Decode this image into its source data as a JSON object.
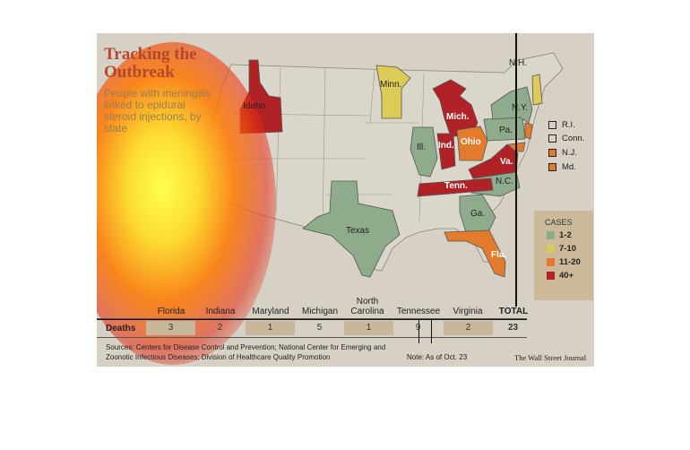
{
  "title": "Tracking the Outbreak",
  "subtitle": "People with meningitis linked to epidural steroid injections, by state",
  "colors": {
    "background": "#d6d1c4",
    "land": "#dbd6ca",
    "cases_1_2": "#8eab8b",
    "cases_7_10": "#dccb57",
    "cases_11_20": "#e27b2c",
    "cases_40_plus": "#b02226",
    "title": "#b4462c"
  },
  "map_labels": {
    "idaho": "Idaho",
    "minn": "Minn.",
    "mich": "Mich.",
    "ny": "N.Y.",
    "nh": "N.H.",
    "pa": "Pa.",
    "ohio": "Ohio",
    "ind": "Ind.",
    "ill": "Ill.",
    "va": "Va.",
    "nc": "N.C.",
    "tenn": "Tenn.",
    "ga": "Ga.",
    "fla": "Fla.",
    "texas": "Texas"
  },
  "small_states": [
    {
      "label": "R.I.",
      "color": "#dbd6ca"
    },
    {
      "label": "Conn.",
      "color": "#dbd6ca"
    },
    {
      "label": "N.J.",
      "color": "#e27b2c"
    },
    {
      "label": "Md.",
      "color": "#e27b2c"
    }
  ],
  "legend": {
    "title": "CASES",
    "items": [
      {
        "label": "1-2",
        "color": "#8eab8b"
      },
      {
        "label": "7-10",
        "color": "#dccb57"
      },
      {
        "label": "11-20",
        "color": "#e27b2c"
      },
      {
        "label": "40+",
        "color": "#b02226"
      }
    ]
  },
  "deaths_table": {
    "row_label": "Deaths",
    "columns": [
      "Florida",
      "Indiana",
      "Maryland",
      "Michigan",
      "North Carolina",
      "Tennessee",
      "Virginia",
      "TOTAL"
    ],
    "values": [
      "3",
      "2",
      "1",
      "5",
      "1",
      "9",
      "2",
      "23"
    ]
  },
  "source": "Sources: Centers for Disease Control and Prevention; National Center for Emerging and Zoonotic Infectious Diseases; Division of Healthcare Quality Promotion",
  "note": "Note: As of Oct. 23",
  "credit": "The Wall Street Journal"
}
